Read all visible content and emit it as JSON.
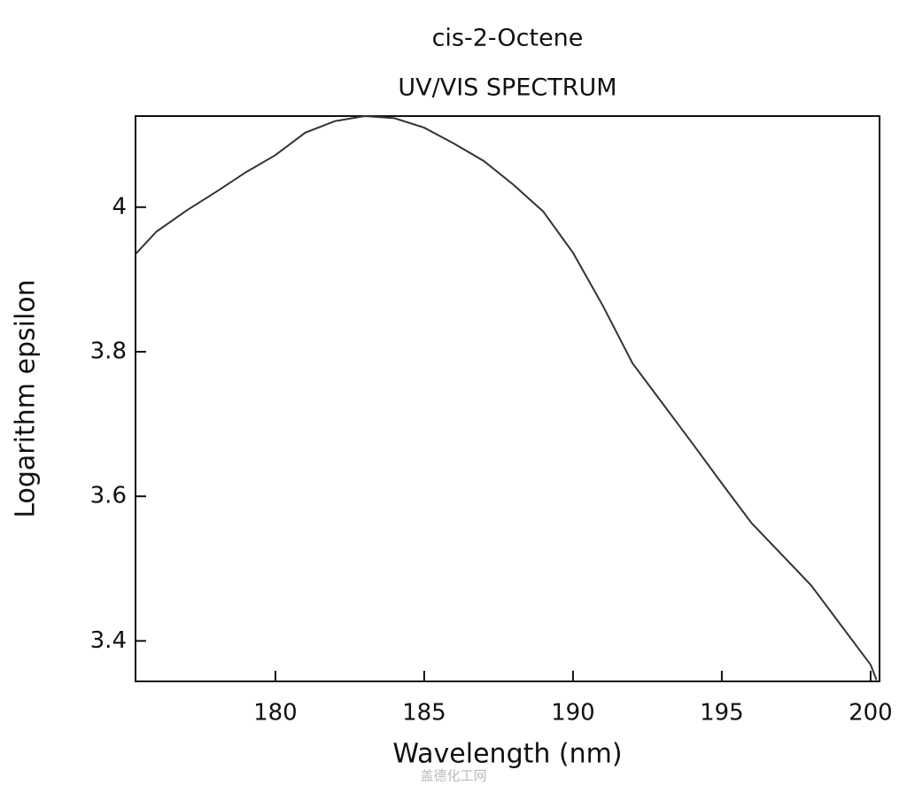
{
  "chart_data": {
    "type": "line",
    "title": "cis-2-Octene",
    "subtitle": "UV/VIS SPECTRUM",
    "x_label": "Wavelength (nm)",
    "y_label": "Logarithm epsilon",
    "x": [
      175.3,
      176,
      177,
      178,
      179,
      180,
      181,
      182,
      183,
      184,
      185,
      186,
      187,
      188,
      189,
      190,
      191,
      192,
      193,
      194,
      195,
      196,
      197,
      198,
      199,
      200,
      200.2
    ],
    "values": [
      3.935,
      3.966,
      3.995,
      4.021,
      4.048,
      4.072,
      4.103,
      4.119,
      4.126,
      4.123,
      4.11,
      4.088,
      4.064,
      4.031,
      3.994,
      3.937,
      3.864,
      3.784,
      3.729,
      3.674,
      3.618,
      3.563,
      3.52,
      3.477,
      3.422,
      3.367,
      3.346
    ],
    "color": "#333333",
    "xlim": [
      175.3,
      200.3
    ],
    "ylim": [
      3.344,
      4.126
    ],
    "xticks": [
      180,
      185,
      190,
      195,
      200
    ],
    "yticks": [
      3.4,
      3.6,
      3.8,
      4
    ],
    "watermark": "盖德化工网"
  }
}
